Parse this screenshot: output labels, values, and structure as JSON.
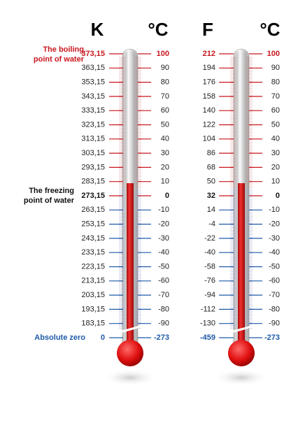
{
  "headers": [
    "K",
    "°C",
    "F",
    "°C"
  ],
  "annotations": {
    "boiling": [
      "The boiling",
      "point of water"
    ],
    "freezing": [
      "The freezing",
      "point  of water"
    ],
    "absolute_zero": "Absolute zero"
  },
  "rows": [
    {
      "k": "373,15",
      "c": "100",
      "f": "212"
    },
    {
      "k": "363,15",
      "c": "90",
      "f": "194"
    },
    {
      "k": "353,15",
      "c": "80",
      "f": "176"
    },
    {
      "k": "343,15",
      "c": "70",
      "f": "158"
    },
    {
      "k": "333,15",
      "c": "60",
      "f": "140"
    },
    {
      "k": "323,15",
      "c": "50",
      "f": "122"
    },
    {
      "k": "313,15",
      "c": "40",
      "f": "104"
    },
    {
      "k": "303,15",
      "c": "30",
      "f": "86"
    },
    {
      "k": "293,15",
      "c": "20",
      "f": "68"
    },
    {
      "k": "283,15",
      "c": "10",
      "f": "50"
    },
    {
      "k": "273,15",
      "c": "0",
      "f": "32"
    },
    {
      "k": "263,15",
      "c": "-10",
      "f": "14"
    },
    {
      "k": "253,15",
      "c": "-20",
      "f": "-4"
    },
    {
      "k": "243,15",
      "c": "-30",
      "f": "-22"
    },
    {
      "k": "233,15",
      "c": "-40",
      "f": "-40"
    },
    {
      "k": "223,15",
      "c": "-50",
      "f": "-58"
    },
    {
      "k": "213,15",
      "c": "-60",
      "f": "-76"
    },
    {
      "k": "203,15",
      "c": "-70",
      "f": "-94"
    },
    {
      "k": "193,15",
      "c": "-80",
      "f": "-112"
    },
    {
      "k": "183,15",
      "c": "-90",
      "f": "-130"
    },
    {
      "k": "0",
      "c": "-273",
      "f": "-459"
    }
  ]
}
